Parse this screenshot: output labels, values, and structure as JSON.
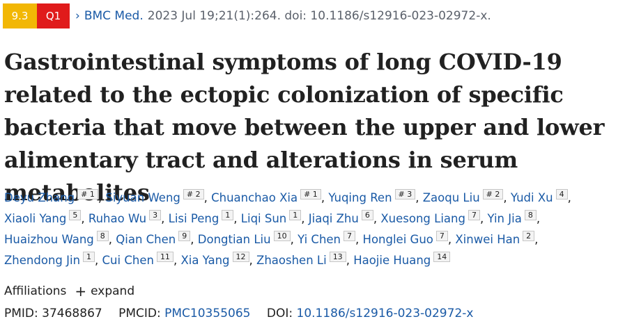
{
  "badges": {
    "impact_factor": "9.3",
    "quartile": "Q1"
  },
  "header": {
    "chevron": "›",
    "journal": "BMC Med.",
    "citation": "2023 Jul 19;21(1):264. doi: 10.1186/s12916-023-02972-x."
  },
  "title": "Gastrointestinal symptoms of long COVID-19 related to the ectopic colonization of specific bacteria that move between the upper and lower alimentary tract and alterations in serum metabolites",
  "authors": [
    {
      "name": "Deyu Zhang",
      "aff": "# 1"
    },
    {
      "name": "Siyuan Weng",
      "aff": "# 2"
    },
    {
      "name": "Chuanchao Xia",
      "aff": "# 1"
    },
    {
      "name": "Yuqing Ren",
      "aff": "# 3"
    },
    {
      "name": "Zaoqu Liu",
      "aff": "# 2"
    },
    {
      "name": "Yudi Xu",
      "aff": "4"
    },
    {
      "name": "Xiaoli Yang",
      "aff": "5"
    },
    {
      "name": "Ruhao Wu",
      "aff": "3"
    },
    {
      "name": "Lisi Peng",
      "aff": "1"
    },
    {
      "name": "Liqi Sun",
      "aff": "1"
    },
    {
      "name": "Jiaqi Zhu",
      "aff": "6"
    },
    {
      "name": "Xuesong Liang",
      "aff": "7"
    },
    {
      "name": "Yin Jia",
      "aff": "8"
    },
    {
      "name": "Huaizhou Wang",
      "aff": "8"
    },
    {
      "name": "Qian Chen",
      "aff": "9"
    },
    {
      "name": "Dongtian Liu",
      "aff": "10"
    },
    {
      "name": "Yi Chen",
      "aff": "7"
    },
    {
      "name": "Honglei Guo",
      "aff": "7"
    },
    {
      "name": "Xinwei Han",
      "aff": "2"
    },
    {
      "name": "Zhendong Jin",
      "aff": "1"
    },
    {
      "name": "Cui Chen",
      "aff": "11"
    },
    {
      "name": "Xia Yang",
      "aff": "12"
    },
    {
      "name": "Zhaoshen Li",
      "aff": "13"
    },
    {
      "name": "Haojie Huang",
      "aff": "14"
    }
  ],
  "affiliations": {
    "label": "Affiliations",
    "plus": "+",
    "expand": "expand"
  },
  "identifiers": {
    "pmid_label": "PMID:",
    "pmid": "37468867",
    "pmcid_label": "PMCID:",
    "pmcid": "PMC10355065",
    "doi_label": "DOI:",
    "doi": "10.1186/s12916-023-02972-x"
  }
}
